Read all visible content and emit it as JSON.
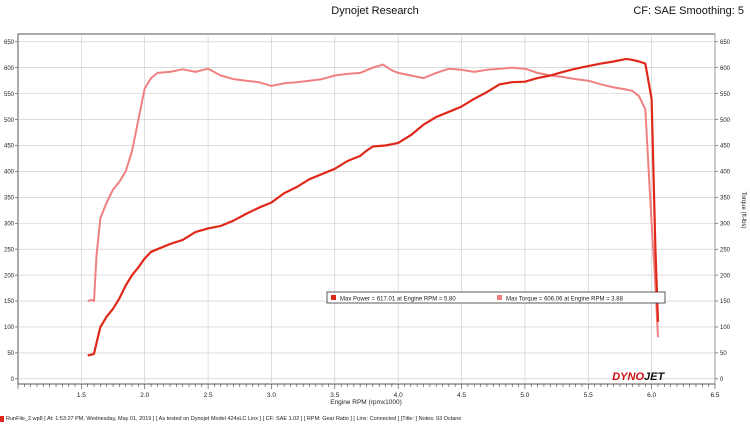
{
  "header": {
    "title": "Dynojet Research",
    "right": "CF: SAE Smoothing: 5"
  },
  "footer": {
    "text": "RunFile_2.wp8 [ At: 1:53:27 PM, Wednesday, May 01, 2019 ] [ As tested on Dynojet Model 424xLC Linx ] [ CF: SAE 1.02 ] [ RPM: Gear Ratio ] [ Linx: Connected ] [Title: ] Notes: 93 Octane"
  },
  "brand": {
    "logo_text_1": "DYNO",
    "logo_text_2": "JET",
    "logo_color": "#cc1111"
  },
  "chart_data": {
    "type": "line",
    "xlabel": "Engine RPM (rpmx1000)",
    "ylabel_left": "",
    "ylabel_right": "Torque (ft-lbs)",
    "xlim": [
      1.0,
      6.5
    ],
    "ylim": [
      -10,
      665
    ],
    "x_ticks": [
      1.5,
      2.0,
      2.5,
      3.0,
      3.5,
      4.0,
      4.5,
      5.0,
      5.5,
      6.0,
      6.5
    ],
    "y_ticks": [
      0,
      50,
      100,
      150,
      200,
      250,
      300,
      350,
      400,
      450,
      500,
      550,
      600,
      650
    ],
    "grid": true,
    "legend": {
      "power_label": "Max Power = 617.01 at Engine RPM = 5.80",
      "torque_label": "Max Torque = 606.06 at Engine RPM = 3.88"
    },
    "series": [
      {
        "name": "Power",
        "color": "#e0281a",
        "x": [
          1.55,
          1.6,
          1.62,
          1.65,
          1.7,
          1.75,
          1.8,
          1.85,
          1.9,
          1.95,
          2.0,
          2.05,
          2.1,
          2.2,
          2.3,
          2.4,
          2.5,
          2.6,
          2.7,
          2.8,
          2.9,
          3.0,
          3.1,
          3.2,
          3.3,
          3.4,
          3.5,
          3.6,
          3.7,
          3.75,
          3.8,
          3.9,
          4.0,
          4.1,
          4.2,
          4.3,
          4.4,
          4.5,
          4.6,
          4.7,
          4.8,
          4.9,
          5.0,
          5.1,
          5.2,
          5.3,
          5.4,
          5.5,
          5.6,
          5.7,
          5.8,
          5.85,
          5.9,
          5.95,
          6.0,
          6.03,
          6.05
        ],
        "values": [
          45,
          48,
          70,
          100,
          120,
          135,
          155,
          180,
          200,
          215,
          232,
          245,
          250,
          260,
          268,
          283,
          290,
          295,
          305,
          318,
          330,
          340,
          358,
          370,
          385,
          395,
          405,
          420,
          430,
          440,
          448,
          450,
          455,
          470,
          490,
          505,
          515,
          525,
          540,
          553,
          568,
          572,
          573,
          580,
          585,
          592,
          598,
          603,
          608,
          612,
          617,
          615,
          612,
          608,
          540,
          250,
          110
        ]
      },
      {
        "name": "Torque",
        "color": "#f08080",
        "x": [
          1.55,
          1.58,
          1.6,
          1.62,
          1.65,
          1.7,
          1.75,
          1.8,
          1.85,
          1.9,
          1.95,
          2.0,
          2.05,
          2.1,
          2.2,
          2.3,
          2.4,
          2.5,
          2.6,
          2.7,
          2.8,
          2.9,
          3.0,
          3.1,
          3.2,
          3.3,
          3.4,
          3.5,
          3.6,
          3.7,
          3.8,
          3.88,
          3.95,
          4.0,
          4.1,
          4.2,
          4.3,
          4.4,
          4.5,
          4.6,
          4.7,
          4.8,
          4.9,
          5.0,
          5.1,
          5.2,
          5.3,
          5.4,
          5.5,
          5.6,
          5.7,
          5.8,
          5.85,
          5.9,
          5.95,
          6.0,
          6.03,
          6.05
        ],
        "values": [
          150,
          152,
          150,
          240,
          310,
          340,
          365,
          380,
          400,
          440,
          500,
          560,
          580,
          590,
          592,
          597,
          592,
          598,
          585,
          578,
          575,
          572,
          565,
          570,
          572,
          575,
          578,
          585,
          588,
          590,
          600,
          606,
          595,
          590,
          585,
          580,
          590,
          598,
          596,
          592,
          596,
          598,
          600,
          598,
          590,
          585,
          582,
          578,
          575,
          568,
          562,
          558,
          555,
          545,
          520,
          300,
          180,
          80
        ]
      }
    ]
  }
}
